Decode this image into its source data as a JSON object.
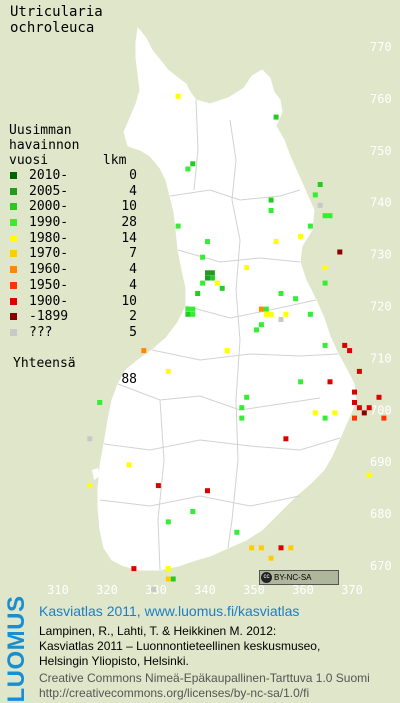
{
  "title": "Utricularia\nochroleuca",
  "legend": {
    "header": "Uusimman\nhavainnon\nvuosi       lkm",
    "rows": [
      {
        "label": "2010-",
        "count": "0",
        "color": "#006400"
      },
      {
        "label": "2005-",
        "count": "4",
        "color": "#229a22"
      },
      {
        "label": "2000-",
        "count": "10",
        "color": "#22cc22"
      },
      {
        "label": "1990-",
        "count": "28",
        "color": "#33ee33"
      },
      {
        "label": "1980-",
        "count": "14",
        "color": "#ffff00"
      },
      {
        "label": "1970-",
        "count": "7",
        "color": "#ffcc00"
      },
      {
        "label": "1960-",
        "count": "4",
        "color": "#ff8800"
      },
      {
        "label": "1950-",
        "count": "4",
        "color": "#ff3300"
      },
      {
        "label": "1900-",
        "count": "10",
        "color": "#dd0000"
      },
      {
        "label": "-1899",
        "count": "2",
        "color": "#880000"
      },
      {
        "label": "???",
        "count": "5",
        "color": "#c8c8c8"
      }
    ],
    "total_label": "Yhteensä",
    "total_count": "88"
  },
  "axes": {
    "y_ticks": [
      "770",
      "760",
      "750",
      "740",
      "730",
      "720",
      "710",
      "700",
      "690",
      "680",
      "670"
    ],
    "x_ticks": [
      "310",
      "320",
      "330",
      "340",
      "350",
      "360",
      "370"
    ]
  },
  "license_badge": "BY-NC-SA",
  "footer": {
    "logo": "LUOMUS",
    "title": "Kasviatlas 2011, www.luomus.fi/kasviatlas",
    "citation_line1": "Lampinen, R., Lahti, T. & Heikkinen M. 2012:",
    "citation_line2": "Kasviatlas 2011 – Luonnontieteellinen keskusmuseo,",
    "citation_line3": "Helsingin Yliopisto, Helsinki.",
    "license_line1": "Creative Commons Nimeä-Epäkaupallinen-Tarttuva 1.0 Suomi",
    "license_line2": "http://creativecommons.org/licenses/by-nc-sa/1.0/fi"
  },
  "colors": {
    "background": "#dfe6c9",
    "land": "#ffffff",
    "borders": "#d2d2d2",
    "footer_blue": "#1a7fc8"
  },
  "observations": [
    {
      "grid_x": 334.5,
      "grid_y": 760.5,
      "period": "1980-"
    },
    {
      "grid_x": 354.5,
      "grid_y": 756.5,
      "period": "2000-"
    },
    {
      "grid_x": 337.5,
      "grid_y": 747.5,
      "period": "2000-"
    },
    {
      "grid_x": 336.5,
      "grid_y": 746.5,
      "period": "1990-"
    },
    {
      "grid_x": 363.5,
      "grid_y": 743.5,
      "period": "2000-"
    },
    {
      "grid_x": 362.5,
      "grid_y": 741.5,
      "period": "1990-"
    },
    {
      "grid_x": 363.5,
      "grid_y": 739.5,
      "period": "???"
    },
    {
      "grid_x": 353.5,
      "grid_y": 740.5,
      "period": "2000-"
    },
    {
      "grid_x": 353.5,
      "grid_y": 738.5,
      "period": "1990-"
    },
    {
      "grid_x": 364.5,
      "grid_y": 737.5,
      "period": "1990-"
    },
    {
      "grid_x": 365.5,
      "grid_y": 737.5,
      "period": "1990-"
    },
    {
      "grid_x": 361.5,
      "grid_y": 735.5,
      "period": "1990-"
    },
    {
      "grid_x": 334.5,
      "grid_y": 735.5,
      "period": "1990-"
    },
    {
      "grid_x": 359.5,
      "grid_y": 733.5,
      "period": "1980-"
    },
    {
      "grid_x": 354.5,
      "grid_y": 732.5,
      "period": "1980-"
    },
    {
      "grid_x": 340.5,
      "grid_y": 732.5,
      "period": "1990-"
    },
    {
      "grid_x": 367.5,
      "grid_y": 730.5,
      "period": "-1899"
    },
    {
      "grid_x": 339.5,
      "grid_y": 729.5,
      "period": "1990-"
    },
    {
      "grid_x": 348.5,
      "grid_y": 727.5,
      "period": "1980-"
    },
    {
      "grid_x": 364.5,
      "grid_y": 727.5,
      "period": "1980-"
    },
    {
      "grid_x": 340.5,
      "grid_y": 726.5,
      "period": "2005-"
    },
    {
      "grid_x": 341.5,
      "grid_y": 726.5,
      "period": "2005-"
    },
    {
      "grid_x": 340.5,
      "grid_y": 725.5,
      "period": "2005-"
    },
    {
      "grid_x": 341.5,
      "grid_y": 725.5,
      "period": "2000-"
    },
    {
      "grid_x": 342.5,
      "grid_y": 724.5,
      "period": "1980-"
    },
    {
      "grid_x": 364.5,
      "grid_y": 724.5,
      "period": "1990-"
    },
    {
      "grid_x": 339.5,
      "grid_y": 724.5,
      "period": "1990-"
    },
    {
      "grid_x": 343.5,
      "grid_y": 723.5,
      "period": "2000-"
    },
    {
      "grid_x": 338.5,
      "grid_y": 722.5,
      "period": "2000-"
    },
    {
      "grid_x": 355.5,
      "grid_y": 722.5,
      "period": "1990-"
    },
    {
      "grid_x": 358.5,
      "grid_y": 721.5,
      "period": "1990-"
    },
    {
      "grid_x": 336.5,
      "grid_y": 719.5,
      "period": "1990-"
    },
    {
      "grid_x": 337.5,
      "grid_y": 719.5,
      "period": "1990-"
    },
    {
      "grid_x": 351.5,
      "grid_y": 719.5,
      "period": "1960-"
    },
    {
      "grid_x": 352.5,
      "grid_y": 719.5,
      "period": "1990-"
    },
    {
      "grid_x": 361.5,
      "grid_y": 718.5,
      "period": "1990-"
    },
    {
      "grid_x": 336.5,
      "grid_y": 718.5,
      "period": "2000-"
    },
    {
      "grid_x": 337.5,
      "grid_y": 718.5,
      "period": "1990-"
    },
    {
      "grid_x": 352.5,
      "grid_y": 718.5,
      "period": "1980-"
    },
    {
      "grid_x": 353.5,
      "grid_y": 718.5,
      "period": "1980-"
    },
    {
      "grid_x": 355.5,
      "grid_y": 717.5,
      "period": "???"
    },
    {
      "grid_x": 356.5,
      "grid_y": 718.5,
      "period": "1980-"
    },
    {
      "grid_x": 351.5,
      "grid_y": 716.5,
      "period": "1990-"
    },
    {
      "grid_x": 350.5,
      "grid_y": 715.5,
      "period": "1990-"
    },
    {
      "grid_x": 327.5,
      "grid_y": 711.5,
      "period": "1960-"
    },
    {
      "grid_x": 364.5,
      "grid_y": 712.5,
      "period": "1990-"
    },
    {
      "grid_x": 368.5,
      "grid_y": 712.5,
      "period": "1900-"
    },
    {
      "grid_x": 369.5,
      "grid_y": 711.5,
      "period": "1900-"
    },
    {
      "grid_x": 344.5,
      "grid_y": 711.5,
      "period": "1980-"
    },
    {
      "grid_x": 332.5,
      "grid_y": 707.5,
      "period": "1980-"
    },
    {
      "grid_x": 359.5,
      "grid_y": 705.5,
      "period": "1990-"
    },
    {
      "grid_x": 371.5,
      "grid_y": 707.5,
      "period": "1900-"
    },
    {
      "grid_x": 365.5,
      "grid_y": 705.5,
      "period": "1900-"
    },
    {
      "grid_x": 370.5,
      "grid_y": 703.5,
      "period": "1900-"
    },
    {
      "grid_x": 375.5,
      "grid_y": 702.5,
      "period": "1900-"
    },
    {
      "grid_x": 348.5,
      "grid_y": 702.5,
      "period": "1990-"
    },
    {
      "grid_x": 373.5,
      "grid_y": 700.5,
      "period": "1900-"
    },
    {
      "grid_x": 371.5,
      "grid_y": 700.5,
      "period": "1900-"
    },
    {
      "grid_x": 370.5,
      "grid_y": 701.5,
      "period": "1900-"
    },
    {
      "grid_x": 372.5,
      "grid_y": 699.5,
      "period": "-1899"
    },
    {
      "grid_x": 347.5,
      "grid_y": 700.5,
      "period": "1990-"
    },
    {
      "grid_x": 362.5,
      "grid_y": 699.5,
      "period": "1980-"
    },
    {
      "grid_x": 366.5,
      "grid_y": 699.5,
      "period": "1980-"
    },
    {
      "grid_x": 370.5,
      "grid_y": 698.5,
      "period": "1950-"
    },
    {
      "grid_x": 376.5,
      "grid_y": 698.5,
      "period": "1950-"
    },
    {
      "grid_x": 364.5,
      "grid_y": 698.5,
      "period": "1990-"
    },
    {
      "grid_x": 318.5,
      "grid_y": 701.5,
      "period": "1990-"
    },
    {
      "grid_x": 347.5,
      "grid_y": 698.5,
      "period": "1990-"
    },
    {
      "grid_x": 356.5,
      "grid_y": 694.5,
      "period": "1900-"
    },
    {
      "grid_x": 316.5,
      "grid_y": 694.5,
      "period": "???"
    },
    {
      "grid_x": 324.5,
      "grid_y": 689.5,
      "period": "1980-"
    },
    {
      "grid_x": 373.5,
      "grid_y": 687.5,
      "period": "1980-"
    },
    {
      "grid_x": 316.5,
      "grid_y": 685.5,
      "period": "1980-"
    },
    {
      "grid_x": 330.5,
      "grid_y": 685.5,
      "period": "1900-"
    },
    {
      "grid_x": 340.5,
      "grid_y": 684.5,
      "period": "1900-"
    },
    {
      "grid_x": 337.5,
      "grid_y": 680.5,
      "period": "1990-"
    },
    {
      "grid_x": 332.5,
      "grid_y": 678.5,
      "period": "1990-"
    },
    {
      "grid_x": 346.5,
      "grid_y": 676.5,
      "period": "1990-"
    },
    {
      "grid_x": 349.5,
      "grid_y": 673.5,
      "period": "1970-"
    },
    {
      "grid_x": 351.5,
      "grid_y": 673.5,
      "period": "1970-"
    },
    {
      "grid_x": 355.5,
      "grid_y": 673.5,
      "period": "1900-"
    },
    {
      "grid_x": 353.5,
      "grid_y": 671.5,
      "period": "1970-"
    },
    {
      "grid_x": 357.5,
      "grid_y": 673.5,
      "period": "1970-"
    },
    {
      "grid_x": 325.5,
      "grid_y": 669.5,
      "period": "1900-"
    },
    {
      "grid_x": 332.5,
      "grid_y": 669.5,
      "period": "1980-"
    },
    {
      "grid_x": 333.5,
      "grid_y": 667.5,
      "period": "2000-"
    },
    {
      "grid_x": 332.5,
      "grid_y": 667.5,
      "period": "1970-"
    },
    {
      "grid_x": 329.5,
      "grid_y": 665.5,
      "period": "???"
    }
  ]
}
